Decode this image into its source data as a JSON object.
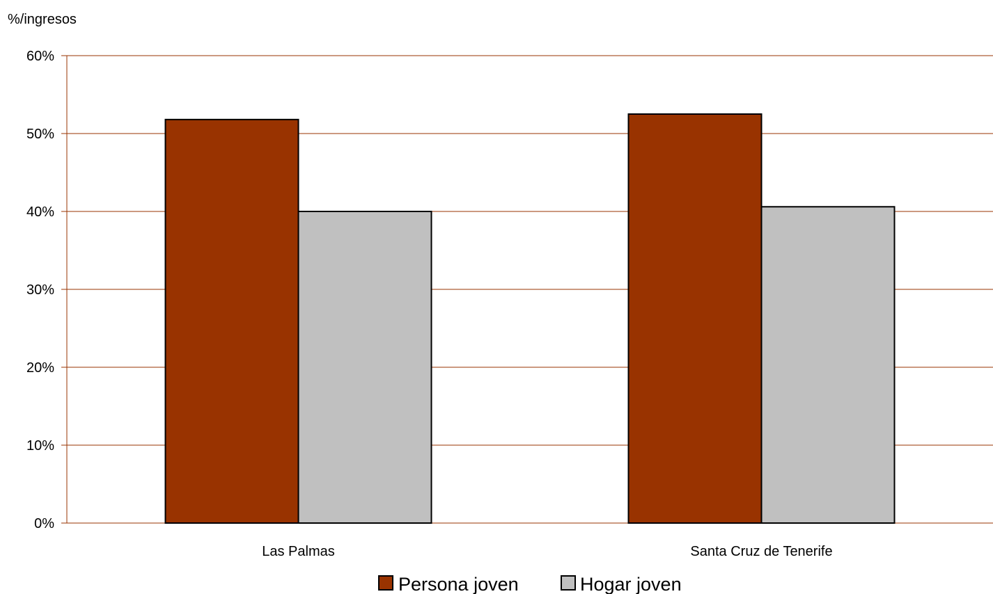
{
  "chart_data": {
    "type": "bar",
    "title": "",
    "xlabel": "",
    "ylabel": "%/ingresos",
    "categories": [
      "Las Palmas",
      "Santa Cruz de Tenerife"
    ],
    "series": [
      {
        "name": "Persona joven",
        "values": [
          51.8,
          52.5
        ],
        "color": "#993300"
      },
      {
        "name": "Hogar joven",
        "values": [
          40.0,
          40.6
        ],
        "color": "#c0c0c0"
      }
    ],
    "ylim": [
      0,
      60
    ],
    "yticks": [
      0,
      10,
      20,
      30,
      40,
      50,
      60
    ],
    "ytick_labels": [
      "0%",
      "10%",
      "20%",
      "30%",
      "40%",
      "50%",
      "60%"
    ],
    "grid": true,
    "grid_color": "#993300",
    "legend_position": "bottom-center"
  }
}
